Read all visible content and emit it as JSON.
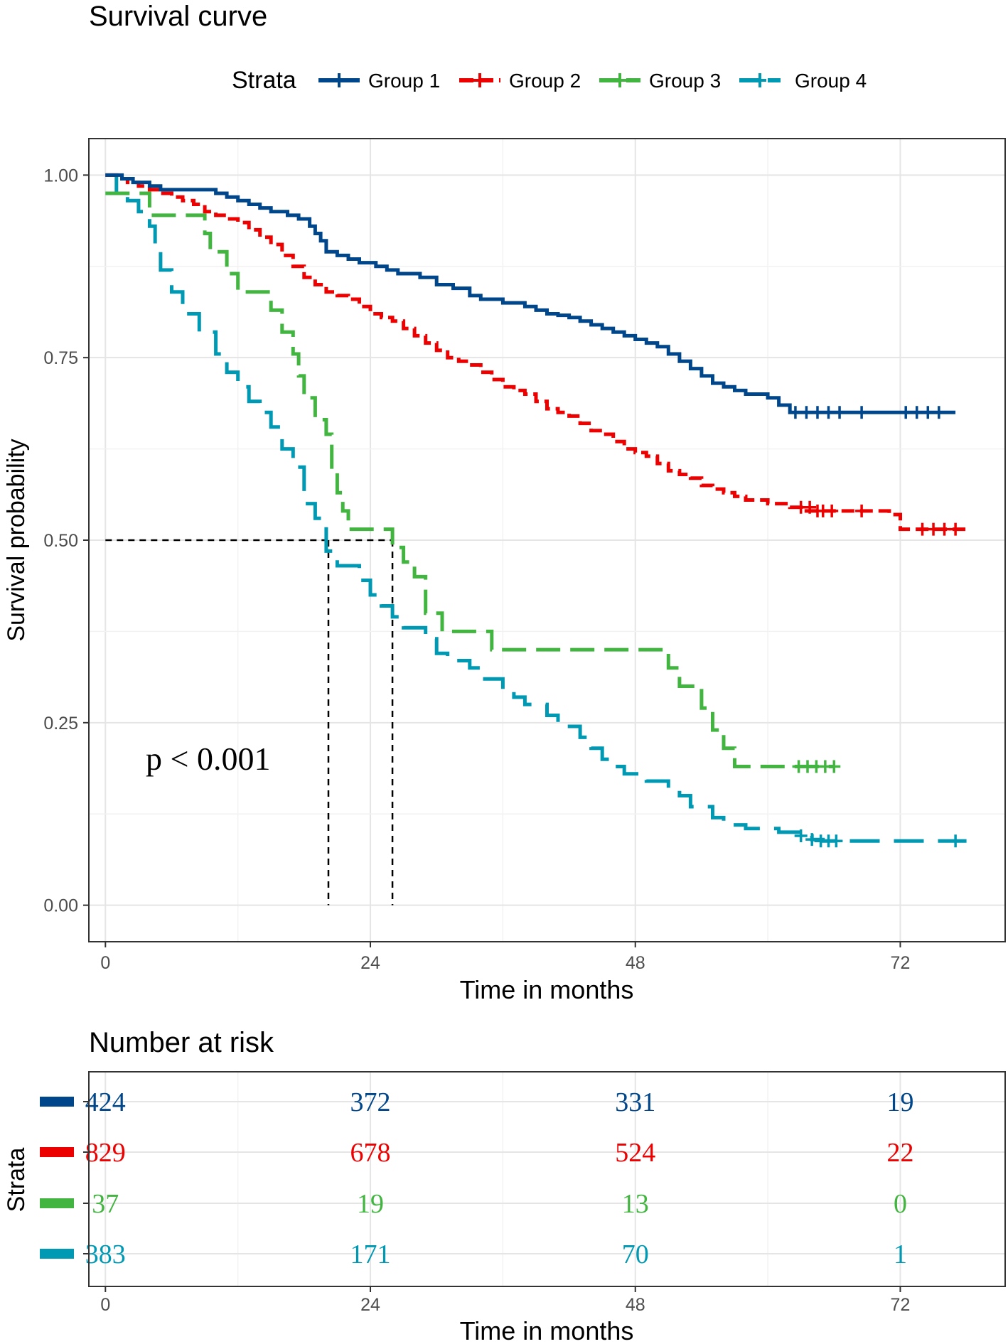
{
  "chart_data": {
    "type": "line",
    "title": "Survival curve",
    "legend": {
      "title": "Strata",
      "position": "top",
      "entries": [
        "Group 1",
        "Group 2",
        "Group 3",
        "Group 4"
      ]
    },
    "xlabel": "Time in months",
    "ylabel": "Survival probability",
    "xlim": [
      -1.5,
      81.5
    ],
    "ylim": [
      -0.05,
      1.05
    ],
    "xticks": [
      "0",
      "24",
      "48",
      "72"
    ],
    "xtick_values": [
      0,
      24,
      48,
      72
    ],
    "yticks": [
      "0.00",
      "0.25",
      "0.50",
      "0.75",
      "1.00"
    ],
    "ytick_values": [
      0,
      0.25,
      0.5,
      0.75,
      1.0
    ],
    "grid": true,
    "annotation": "p < 0.001",
    "median_lines": [
      {
        "x": 20.2,
        "y": 0.5
      },
      {
        "x": 26.0,
        "y": 0.5
      }
    ],
    "colors": {
      "Group 1": "#00468B",
      "Group 2": "#ED0000",
      "Group 3": "#42B540",
      "Group 4": "#0099B4"
    },
    "series": [
      {
        "name": "Group 1",
        "steps": [
          [
            0,
            1.0
          ],
          [
            1.5,
            0.995
          ],
          [
            2.5,
            0.99
          ],
          [
            4,
            0.985
          ],
          [
            5,
            0.98
          ],
          [
            10,
            0.975
          ],
          [
            11,
            0.97
          ],
          [
            12,
            0.965
          ],
          [
            13,
            0.96
          ],
          [
            14,
            0.955
          ],
          [
            15,
            0.95
          ],
          [
            16.5,
            0.945
          ],
          [
            17.5,
            0.94
          ],
          [
            18.5,
            0.93
          ],
          [
            19,
            0.92
          ],
          [
            19.5,
            0.91
          ],
          [
            20,
            0.895
          ],
          [
            21,
            0.89
          ],
          [
            22,
            0.885
          ],
          [
            23,
            0.88
          ],
          [
            24.5,
            0.875
          ],
          [
            25.5,
            0.87
          ],
          [
            26.5,
            0.865
          ],
          [
            28.5,
            0.86
          ],
          [
            30,
            0.85
          ],
          [
            31.5,
            0.845
          ],
          [
            33,
            0.835
          ],
          [
            34,
            0.83
          ],
          [
            36,
            0.825
          ],
          [
            38,
            0.82
          ],
          [
            39,
            0.815
          ],
          [
            40,
            0.81
          ],
          [
            41,
            0.808
          ],
          [
            42,
            0.805
          ],
          [
            43,
            0.8
          ],
          [
            44,
            0.795
          ],
          [
            45,
            0.79
          ],
          [
            46,
            0.785
          ],
          [
            47,
            0.78
          ],
          [
            48,
            0.775
          ],
          [
            49,
            0.77
          ],
          [
            50,
            0.765
          ],
          [
            51,
            0.755
          ],
          [
            52,
            0.745
          ],
          [
            53,
            0.735
          ],
          [
            54,
            0.725
          ],
          [
            55,
            0.715
          ],
          [
            56,
            0.71
          ],
          [
            57,
            0.705
          ],
          [
            58,
            0.7
          ],
          [
            60,
            0.695
          ],
          [
            61,
            0.685
          ],
          [
            62,
            0.675
          ],
          [
            77,
            0.675
          ]
        ],
        "censor_marks": [
          [
            62.5,
            0.675
          ],
          [
            63.5,
            0.675
          ],
          [
            64.5,
            0.675
          ],
          [
            65.5,
            0.675
          ],
          [
            66.5,
            0.675
          ],
          [
            68.5,
            0.675
          ],
          [
            72.5,
            0.675
          ],
          [
            73.5,
            0.675
          ],
          [
            74.5,
            0.675
          ],
          [
            75.5,
            0.675
          ]
        ]
      },
      {
        "name": "Group 2",
        "steps": [
          [
            0,
            1.0
          ],
          [
            1,
            0.995
          ],
          [
            2,
            0.99
          ],
          [
            3,
            0.985
          ],
          [
            4,
            0.98
          ],
          [
            5,
            0.975
          ],
          [
            6,
            0.97
          ],
          [
            7,
            0.965
          ],
          [
            8,
            0.96
          ],
          [
            9,
            0.95
          ],
          [
            10,
            0.945
          ],
          [
            11,
            0.94
          ],
          [
            12,
            0.935
          ],
          [
            13,
            0.925
          ],
          [
            14,
            0.915
          ],
          [
            15,
            0.905
          ],
          [
            16,
            0.89
          ],
          [
            17,
            0.875
          ],
          [
            18,
            0.86
          ],
          [
            19,
            0.85
          ],
          [
            20,
            0.84
          ],
          [
            21,
            0.835
          ],
          [
            22,
            0.83
          ],
          [
            23,
            0.82
          ],
          [
            24,
            0.81
          ],
          [
            25,
            0.805
          ],
          [
            26,
            0.8
          ],
          [
            27,
            0.79
          ],
          [
            28,
            0.78
          ],
          [
            29,
            0.77
          ],
          [
            30,
            0.76
          ],
          [
            31,
            0.75
          ],
          [
            32,
            0.745
          ],
          [
            33,
            0.74
          ],
          [
            34,
            0.73
          ],
          [
            35,
            0.72
          ],
          [
            36,
            0.71
          ],
          [
            37,
            0.705
          ],
          [
            38,
            0.7
          ],
          [
            39,
            0.69
          ],
          [
            40,
            0.68
          ],
          [
            41,
            0.675
          ],
          [
            42,
            0.67
          ],
          [
            43,
            0.66
          ],
          [
            44,
            0.65
          ],
          [
            45,
            0.645
          ],
          [
            46,
            0.635
          ],
          [
            47,
            0.625
          ],
          [
            48,
            0.62
          ],
          [
            49,
            0.615
          ],
          [
            50,
            0.605
          ],
          [
            51,
            0.595
          ],
          [
            52,
            0.59
          ],
          [
            53,
            0.585
          ],
          [
            54,
            0.575
          ],
          [
            55,
            0.57
          ],
          [
            56,
            0.565
          ],
          [
            57,
            0.56
          ],
          [
            58,
            0.555
          ],
          [
            60,
            0.55
          ],
          [
            62,
            0.545
          ],
          [
            63,
            0.54
          ],
          [
            71,
            0.535
          ],
          [
            72,
            0.515
          ],
          [
            78,
            0.515
          ]
        ],
        "censor_marks": [
          [
            63,
            0.545
          ],
          [
            63.8,
            0.545
          ],
          [
            64.5,
            0.54
          ],
          [
            65,
            0.54
          ],
          [
            65.8,
            0.54
          ],
          [
            68.5,
            0.54
          ],
          [
            74,
            0.515
          ],
          [
            75,
            0.515
          ],
          [
            76,
            0.515
          ],
          [
            77,
            0.515
          ]
        ]
      },
      {
        "name": "Group 3",
        "steps": [
          [
            0,
            0.975
          ],
          [
            4,
            0.945
          ],
          [
            9,
            0.92
          ],
          [
            9.5,
            0.895
          ],
          [
            11,
            0.865
          ],
          [
            12,
            0.84
          ],
          [
            15,
            0.815
          ],
          [
            16,
            0.785
          ],
          [
            17,
            0.755
          ],
          [
            17.5,
            0.725
          ],
          [
            18,
            0.695
          ],
          [
            19,
            0.665
          ],
          [
            20,
            0.645
          ],
          [
            20.5,
            0.595
          ],
          [
            21,
            0.565
          ],
          [
            21.5,
            0.54
          ],
          [
            22,
            0.515
          ],
          [
            26,
            0.49
          ],
          [
            27,
            0.47
          ],
          [
            28,
            0.45
          ],
          [
            29,
            0.4
          ],
          [
            30.5,
            0.375
          ],
          [
            35,
            0.35
          ],
          [
            51,
            0.325
          ],
          [
            52,
            0.3
          ],
          [
            54,
            0.27
          ],
          [
            55,
            0.24
          ],
          [
            56,
            0.215
          ],
          [
            57,
            0.19
          ],
          [
            66,
            0.19
          ]
        ],
        "censor_marks": [
          [
            62.8,
            0.19
          ],
          [
            63.6,
            0.19
          ],
          [
            64.4,
            0.19
          ],
          [
            65.2,
            0.19
          ],
          [
            66,
            0.19
          ]
        ]
      },
      {
        "name": "Group 4",
        "steps": [
          [
            0,
            1.0
          ],
          [
            1,
            0.975
          ],
          [
            2,
            0.965
          ],
          [
            3,
            0.95
          ],
          [
            4,
            0.93
          ],
          [
            4.5,
            0.895
          ],
          [
            5,
            0.87
          ],
          [
            6,
            0.84
          ],
          [
            7,
            0.81
          ],
          [
            8.5,
            0.785
          ],
          [
            10,
            0.755
          ],
          [
            11,
            0.73
          ],
          [
            12,
            0.71
          ],
          [
            13,
            0.69
          ],
          [
            14,
            0.675
          ],
          [
            15,
            0.655
          ],
          [
            16,
            0.625
          ],
          [
            17,
            0.6
          ],
          [
            18,
            0.55
          ],
          [
            19,
            0.53
          ],
          [
            20,
            0.485
          ],
          [
            21,
            0.465
          ],
          [
            23,
            0.445
          ],
          [
            24,
            0.425
          ],
          [
            25,
            0.41
          ],
          [
            26,
            0.395
          ],
          [
            27,
            0.38
          ],
          [
            29,
            0.365
          ],
          [
            30,
            0.345
          ],
          [
            31,
            0.335
          ],
          [
            33,
            0.325
          ],
          [
            34,
            0.31
          ],
          [
            36,
            0.295
          ],
          [
            37,
            0.285
          ],
          [
            38,
            0.275
          ],
          [
            40,
            0.26
          ],
          [
            41,
            0.245
          ],
          [
            43,
            0.23
          ],
          [
            44,
            0.215
          ],
          [
            45,
            0.2
          ],
          [
            46,
            0.19
          ],
          [
            47,
            0.18
          ],
          [
            49,
            0.17
          ],
          [
            51,
            0.16
          ],
          [
            52,
            0.15
          ],
          [
            53,
            0.135
          ],
          [
            55,
            0.12
          ],
          [
            56,
            0.11
          ],
          [
            58,
            0.105
          ],
          [
            61,
            0.1
          ],
          [
            63,
            0.095
          ],
          [
            64,
            0.09
          ],
          [
            65,
            0.088
          ],
          [
            78,
            0.088
          ]
        ],
        "censor_marks": [
          [
            63,
            0.095
          ],
          [
            64,
            0.09
          ],
          [
            64.8,
            0.088
          ],
          [
            65.5,
            0.088
          ],
          [
            66.2,
            0.088
          ],
          [
            77,
            0.088
          ]
        ]
      }
    ],
    "risk_table": {
      "title": "Number at risk",
      "ylabel": "Strata",
      "xlabel": "Time in months",
      "times": [
        "0",
        "24",
        "48",
        "72"
      ],
      "rows": [
        {
          "name": "Group 1",
          "counts": [
            "424",
            "372",
            "331",
            "19"
          ]
        },
        {
          "name": "Group 2",
          "counts": [
            "829",
            "678",
            "524",
            "22"
          ]
        },
        {
          "name": "Group 3",
          "counts": [
            "37",
            "19",
            "13",
            "0"
          ]
        },
        {
          "name": "Group 4",
          "counts": [
            "383",
            "171",
            "70",
            "1"
          ]
        }
      ]
    }
  }
}
